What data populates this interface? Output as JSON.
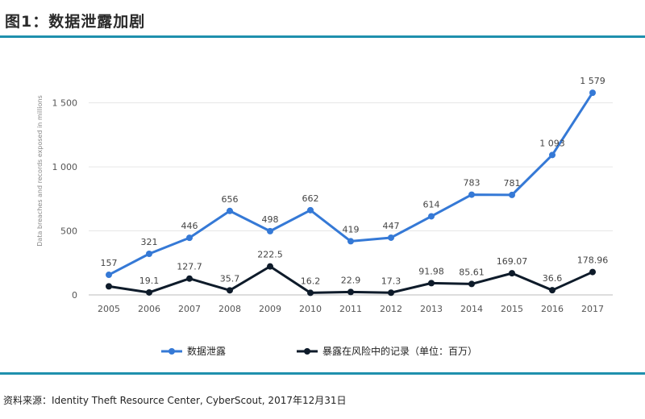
{
  "header": {
    "title": "图1：数据泄露加剧"
  },
  "source": {
    "text": "资料来源：Identity Theft Resource Center, CyberScout, 2017年12月31日"
  },
  "colors": {
    "accent_rule": "#1f90ad",
    "series1": "#3579d6",
    "series2": "#0e1b2a"
  },
  "chart_data": {
    "type": "line",
    "title": "",
    "xlabel": "",
    "ylabel": "Data breaches and records exposed in millions",
    "ylim": [
      0,
      1800
    ],
    "yticks": [
      0,
      500,
      1000,
      1500
    ],
    "ytick_labels": [
      "0",
      "500",
      "1 000",
      "1 500"
    ],
    "categories": [
      "2005",
      "2006",
      "2007",
      "2008",
      "2009",
      "2010",
      "2011",
      "2012",
      "2013",
      "2014",
      "2015",
      "2016",
      "2017"
    ],
    "grid": true,
    "legend_position": "bottom",
    "series": [
      {
        "name": "数据泄露",
        "values": [
          157,
          321,
          446,
          656,
          498,
          662,
          419,
          447,
          614,
          783,
          781,
          1093,
          1579
        ],
        "labels": [
          "157",
          "321",
          "446",
          "656",
          "498",
          "662",
          "419",
          "447",
          "614",
          "783",
          "781",
          "1 093",
          "1 579"
        ]
      },
      {
        "name": "暴露在风险中的记录（单位：百万）",
        "values": [
          66.9,
          19.1,
          127.7,
          35.7,
          222.5,
          16.2,
          22.9,
          17.3,
          91.98,
          85.61,
          169.07,
          36.6,
          178.96
        ],
        "labels": [
          "",
          "19.1",
          "127.7",
          "35.7",
          "222.5",
          "16.2",
          "22.9",
          "17.3",
          "91.98",
          "85.61",
          "169.07",
          "36.6",
          "178.96"
        ]
      }
    ]
  }
}
